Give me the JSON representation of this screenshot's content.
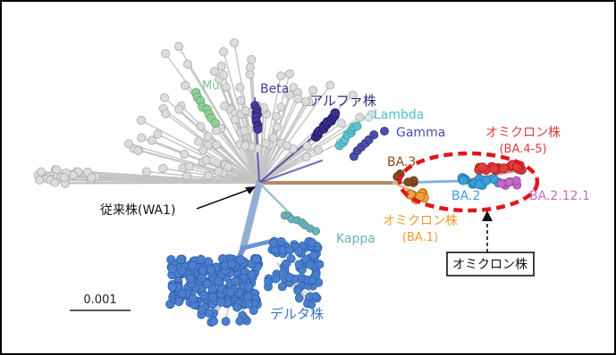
{
  "labels": {
    "mu": "Mu",
    "beta": "Beta",
    "alpha": "アルファ株",
    "lambda": "Lambda",
    "gamma": "Gamma",
    "omicron_ba45_title": "オミクロン株",
    "omicron_ba45_sub": "(BA.4-5)",
    "ba3": "BA.3",
    "ba2": "BA.2",
    "ba2121": "BA.2.12.1",
    "omicron_ba1_title": "オミクロン株",
    "omicron_ba1_sub": "(BA.1)",
    "kappa": "Kappa",
    "wa1": "従来株(WA1)",
    "delta": "デルタ株",
    "scale": "0.001",
    "omicron_box": "オミクロン株"
  },
  "colors": {
    "gray": "#c4c4c4",
    "mu": "#8fcf9a",
    "beta": "#4a3a9c",
    "alpha": "#3a2f8f",
    "lambda": "#5cc4cf",
    "gamma": "#4a4fa8",
    "omicron_red": "#e23b3b",
    "ba3": "#8a4a1f",
    "ba2": "#3b9fd8",
    "ba2121": "#c56bc4",
    "ba1": "#f0a23a",
    "kappa": "#6fb0b8",
    "delta": "#4a7fd0",
    "ellipse": "#e0161e"
  },
  "icons": [
    "arrow-icon"
  ]
}
